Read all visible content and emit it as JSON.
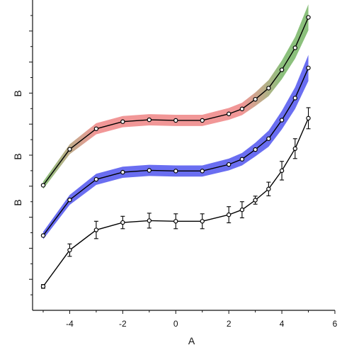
{
  "chart_data": {
    "type": "line",
    "xlabel": "A",
    "ylabels": [
      "B",
      "B",
      "B"
    ],
    "xlim": [
      -5.4,
      6
    ],
    "ylim": [
      0,
      100
    ],
    "x_ticks": [
      -4,
      -2,
      0,
      2,
      4,
      6
    ],
    "x_tick_labels": [
      "-4",
      "-2",
      "0",
      "2",
      "4",
      "6"
    ],
    "grid": false,
    "x": [
      -5,
      -4,
      -3,
      -2,
      -1,
      0,
      1,
      2,
      2.5,
      3,
      3.5,
      4,
      4.5,
      5
    ],
    "series": [
      {
        "style": "band-gradient",
        "band_colors": [
          "#5fa84a",
          "#ec6f6f",
          "#5fa84a"
        ],
        "values": [
          40.3,
          51.9,
          58.5,
          60.8,
          61.4,
          61.2,
          61.2,
          63.3,
          64.9,
          68.0,
          71.6,
          77.5,
          84.6,
          94.4
        ],
        "band": [
          1.2,
          1.6,
          1.8,
          1.8,
          1.8,
          1.8,
          1.8,
          1.9,
          2.0,
          2.2,
          2.6,
          3.0,
          3.5,
          4.2
        ]
      },
      {
        "style": "band-solid",
        "band_colors": [
          "#5a5ef0"
        ],
        "values": [
          24.1,
          35.6,
          42.2,
          44.5,
          45.1,
          44.9,
          44.9,
          47.0,
          48.7,
          51.8,
          55.3,
          61.3,
          68.4,
          78.1
        ],
        "band": [
          1.2,
          1.6,
          1.8,
          1.8,
          1.8,
          1.8,
          1.8,
          1.9,
          2.0,
          2.2,
          2.6,
          3.0,
          3.5,
          4.2
        ]
      },
      {
        "style": "error-bars",
        "values": [
          7.7,
          19.4,
          25.9,
          28.3,
          28.9,
          28.7,
          28.7,
          30.8,
          32.4,
          35.5,
          39.1,
          45.0,
          52.1,
          61.9
        ],
        "errors": [
          0.6,
          2.0,
          2.8,
          2.0,
          2.4,
          2.4,
          2.4,
          2.6,
          2.6,
          1.3,
          2.2,
          3.0,
          3.2,
          3.4
        ]
      }
    ]
  }
}
